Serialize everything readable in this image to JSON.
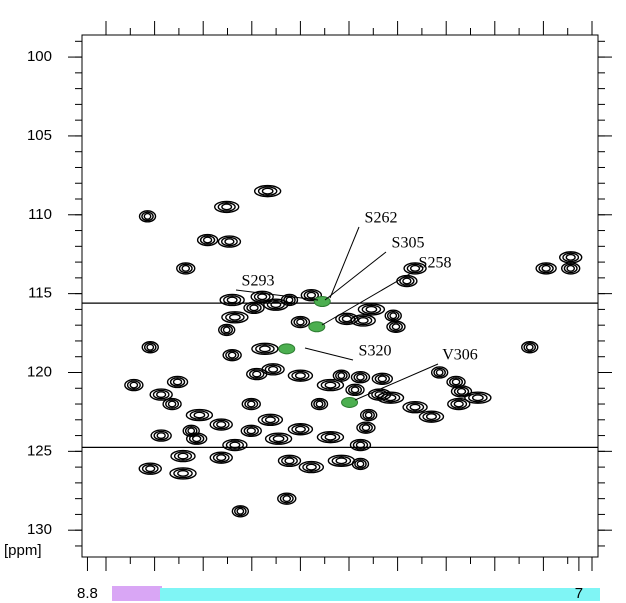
{
  "chart_data": {
    "type": "scatter",
    "y_axis_label": "[ppm]",
    "xlim": [
      8.82,
      6.93
    ],
    "ylim": [
      98.6,
      131.7
    ],
    "xticks": [
      8.8,
      7.0
    ],
    "yticks": [
      100,
      105,
      110,
      115,
      120,
      125,
      130
    ],
    "hlines": [
      115.6,
      124.75
    ],
    "series": [
      {
        "color": "#000000",
        "x": [
          8.58,
          8.44,
          8.36,
          8.28,
          8.29,
          8.14,
          8.57,
          8.63,
          8.47,
          8.53,
          8.27,
          8.26,
          8.29,
          8.27,
          8.19,
          8.16,
          8.11,
          8.15,
          8.06,
          8.02,
          7.98,
          7.85,
          7.79,
          7.76,
          7.68,
          7.67,
          7.63,
          7.6,
          8.02,
          7.91,
          7.87,
          7.8,
          7.72,
          7.73,
          8.02,
          7.91,
          7.77,
          7.78,
          7.8,
          8.06,
          7.98,
          7.87,
          7.8,
          8.2,
          8.2,
          8.31,
          8.26,
          8.39,
          8.42,
          8.49,
          8.53,
          8.57,
          8.45,
          8.45,
          8.24,
          8.07,
          8.4,
          8.31,
          8.13,
          8.1,
          7.51,
          7.45,
          7.43,
          7.44,
          7.54,
          7.37,
          7.18,
          7.03,
          7.12,
          7.03,
          7.6,
          7.69,
          7.95,
          7.82,
          8.18,
          8.12
        ],
        "values": [
          110.1,
          113.4,
          111.6,
          111.7,
          109.5,
          108.5,
          118.4,
          120.8,
          120.6,
          121.4,
          115.4,
          116.5,
          117.3,
          118.9,
          115.9,
          115.2,
          115.7,
          118.5,
          115.4,
          116.8,
          115.1,
          116.6,
          116.7,
          116.0,
          116.4,
          117.1,
          114.2,
          113.4,
          120.2,
          120.8,
          120.2,
          120.3,
          120.4,
          121.4,
          123.6,
          124.1,
          122.7,
          123.5,
          124.6,
          125.6,
          126.0,
          125.6,
          125.8,
          122.0,
          123.7,
          125.4,
          124.6,
          122.7,
          123.7,
          122.0,
          124.0,
          126.1,
          125.3,
          126.4,
          128.8,
          128.0,
          124.2,
          123.3,
          123.0,
          124.2,
          120.0,
          120.6,
          121.2,
          122.0,
          122.8,
          121.6,
          118.4,
          113.4,
          113.4,
          112.7,
          122.2,
          121.6,
          122.0,
          121.1,
          120.1,
          119.8
        ]
      },
      {
        "color": "#4caf50",
        "x": [
          7.94,
          7.96,
          8.07,
          7.84
        ],
        "values": [
          115.5,
          117.1,
          118.5,
          121.9
        ]
      }
    ],
    "annotations": [
      "S262",
      "S305",
      "S258",
      "S293",
      "S320",
      "V306"
    ]
  }
}
